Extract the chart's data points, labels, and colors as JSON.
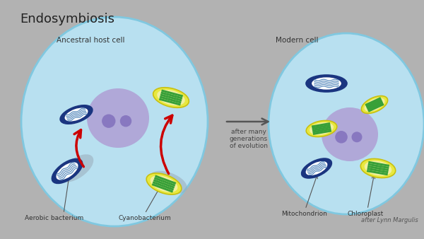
{
  "title": "Endosymbiosis",
  "bg_color": "#b2b2b2",
  "cell_color": "#b8e0f0",
  "nucleus_color": "#b0a8d8",
  "nucleus_dot_color": "#8878c0",
  "left_label": "Ancestral host cell",
  "right_label": "Modern cell",
  "arrow_text": [
    "after many",
    "generations",
    "of evolution"
  ],
  "bottom_labels": [
    "Aerobic bacterium",
    "Cyanobacterium",
    "Mitochondrion",
    "Chloroplast"
  ],
  "credit": "after Lynn Margulis",
  "mito_outer": "#1a3580",
  "mito_inner": "#ffffff",
  "mito_line": "#6090c0",
  "chloro_outer": "#e8e840",
  "chloro_inner": "#e8f0c0",
  "chloro_green": "#38a038",
  "red_arrow": "#cc0000",
  "arrow_color": "#555555",
  "label_color": "#333333",
  "shadow_color": "#a0a0a0"
}
